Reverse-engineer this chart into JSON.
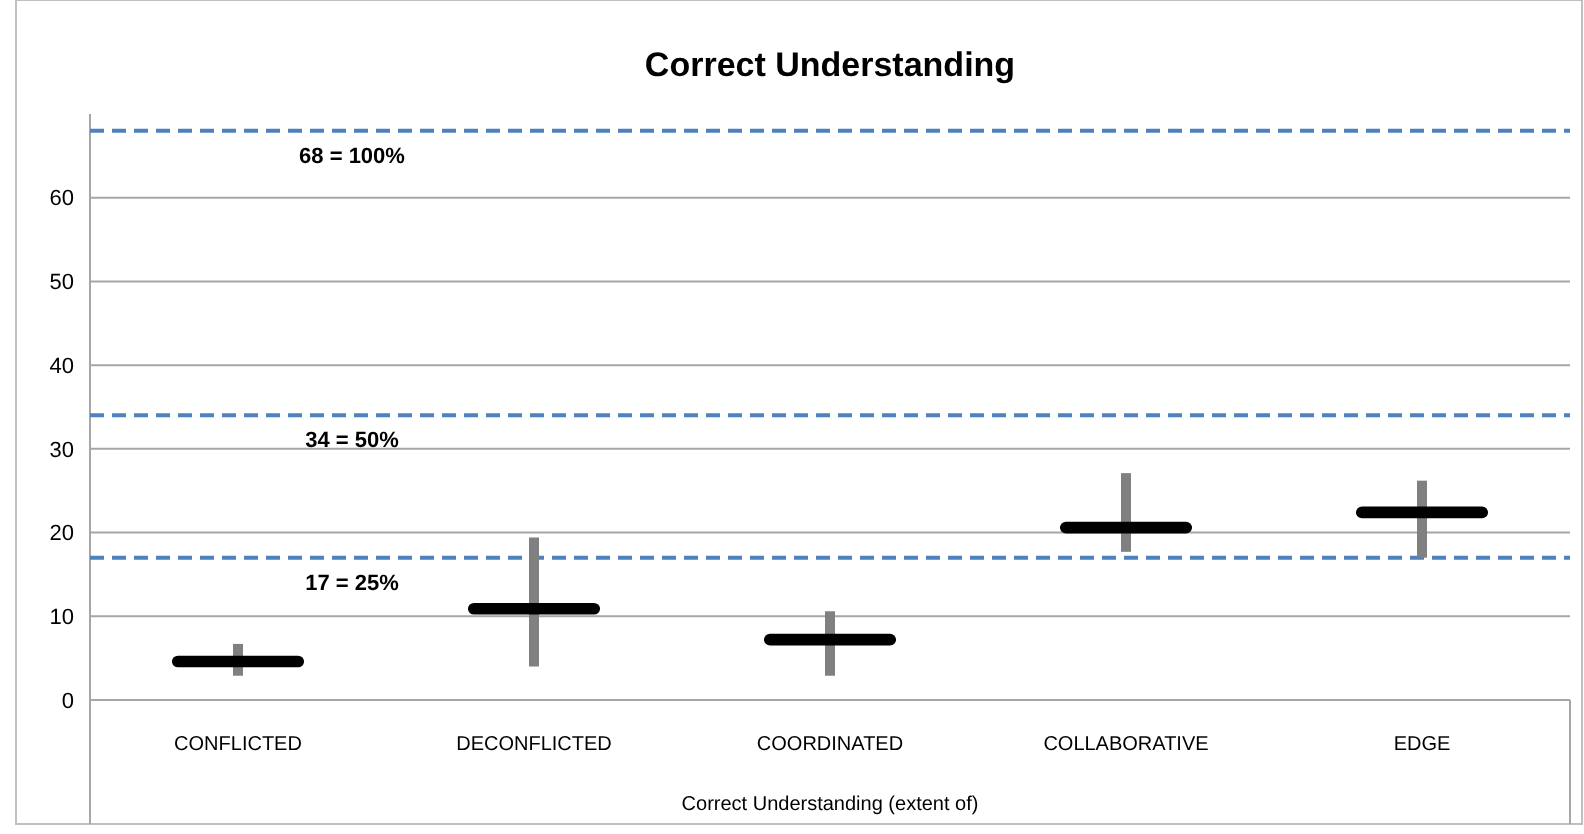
{
  "chart_data": {
    "type": "box",
    "title": "Correct Understanding",
    "xlabel": "Correct Understanding (extent of)",
    "categories": [
      "CONFLICTED",
      "DECONFLICTED",
      "COORDINATED",
      "COLLABORATIVE",
      "EDGE"
    ],
    "series": [
      {
        "color": "#000000",
        "boxes": [
          {
            "low": 2.9,
            "q1": 3.9,
            "median": 4.6,
            "q3": 5.3,
            "high": 6.7
          },
          {
            "low": 4.0,
            "q1": 10.2,
            "median": 10.9,
            "q3": 11.6,
            "high": 19.4
          },
          {
            "low": 2.9,
            "q1": 6.5,
            "median": 7.2,
            "q3": 7.9,
            "high": 10.6
          },
          {
            "low": 17.7,
            "q1": 19.9,
            "median": 20.6,
            "q3": 21.3,
            "high": 27.1
          },
          {
            "low": 17.0,
            "q1": 21.7,
            "median": 22.4,
            "q3": 23.1,
            "high": 26.2
          }
        ]
      }
    ],
    "ylim": [
      0,
      70
    ],
    "yticks": [
      0,
      10,
      20,
      30,
      40,
      50,
      60
    ],
    "grid": "y",
    "ref_lines": [
      {
        "axis": "y",
        "value": 68,
        "label": "68 = 100%",
        "color": "#4f81bd",
        "line_style": "dashed"
      },
      {
        "axis": "y",
        "value": 34,
        "label": "34 = 50%",
        "color": "#4f81bd",
        "line_style": "dashed"
      },
      {
        "axis": "y",
        "value": 17,
        "label": "17 = 25%",
        "color": "#4f81bd",
        "line_style": "dashed"
      }
    ]
  }
}
